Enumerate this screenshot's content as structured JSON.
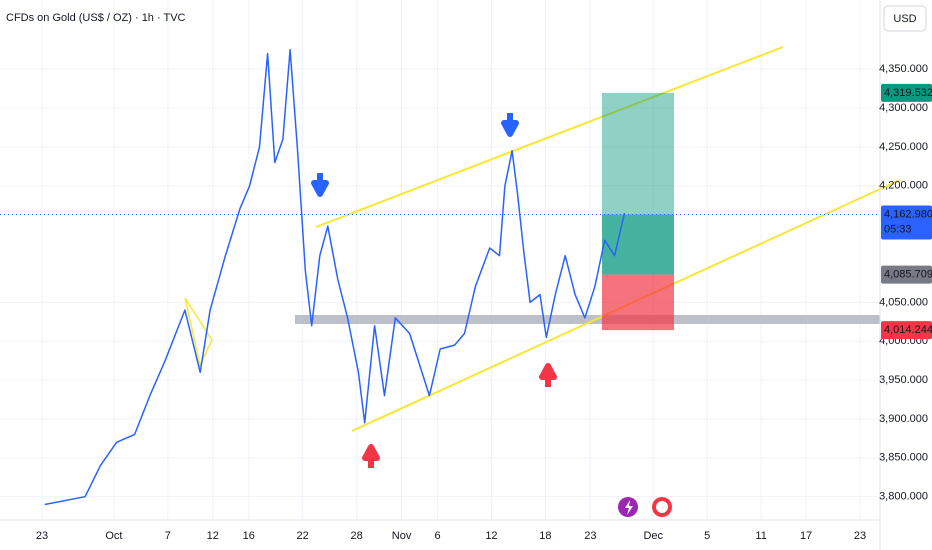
{
  "chart_data": {
    "type": "line",
    "title": "CFDs on Gold (US$ / OZ) · 1h · TVC",
    "currency": "USD",
    "x": [
      0.3,
      4.8,
      6.5,
      8.3,
      10.3,
      12,
      13.7,
      15.9,
      17.6,
      18.7,
      20.4,
      22,
      23.1,
      24.2,
      25.1,
      25.9,
      26.8,
      27.6,
      28.4,
      29.3,
      30,
      30.9,
      31.8,
      32.9,
      34,
      35.2,
      35.9,
      37,
      38.1,
      39.3,
      40.9,
      42,
      43.1,
      44.3,
      45.9,
      47,
      48.2,
      49.8,
      50.9,
      51.5,
      52.3,
      52.9,
      53.6,
      54.3,
      55.4,
      56.1,
      57.1,
      58.2,
      59.3,
      60.4,
      61.5,
      62.6,
      63.7,
      64.8
    ],
    "series": [
      {
        "name": "Gold",
        "color": "#2962ff",
        "values": [
          3790,
          3800,
          3840,
          3870,
          3880,
          3930,
          3975,
          4040,
          3960,
          4040,
          4110,
          4170,
          4200,
          4250,
          4370,
          4230,
          4260,
          4375,
          4250,
          4090,
          4020,
          4110,
          4148,
          4080,
          4030,
          3960,
          3895,
          4020,
          3930,
          4030,
          4010,
          3970,
          3930,
          3990,
          3995,
          4010,
          4070,
          4120,
          4110,
          4200,
          4245,
          4190,
          4115,
          4050,
          4060,
          4005,
          4060,
          4110,
          4060,
          4030,
          4070,
          4130,
          4110,
          4165
        ]
      }
    ],
    "xlim": [
      -1,
      92
    ],
    "ylim": [
      3770,
      4439
    ],
    "xticks": [
      {
        "value": 0,
        "label": "23"
      },
      {
        "value": 8,
        "label": "Oct"
      },
      {
        "value": 14,
        "label": "7"
      },
      {
        "value": 19,
        "label": "12"
      },
      {
        "value": 23,
        "label": "16"
      },
      {
        "value": 29,
        "label": "22"
      },
      {
        "value": 35,
        "label": "28"
      },
      {
        "value": 40,
        "label": "Nov"
      },
      {
        "value": 44,
        "label": "6"
      },
      {
        "value": 50,
        "label": "12"
      },
      {
        "value": 56,
        "label": "18"
      },
      {
        "value": 61,
        "label": "23"
      },
      {
        "value": 68,
        "label": "Dec"
      },
      {
        "value": 74,
        "label": "5"
      },
      {
        "value": 80,
        "label": "11"
      },
      {
        "value": 85,
        "label": "17"
      },
      {
        "value": 91,
        "label": "23"
      }
    ],
    "yticks": [
      {
        "value": 4350,
        "label": "4,350.000"
      },
      {
        "value": 4300,
        "label": "4,300.000"
      },
      {
        "value": 4250,
        "label": "4,250.000"
      },
      {
        "value": 4200,
        "label": "4,200.000"
      },
      {
        "value": 4050,
        "label": "4,050.000"
      },
      {
        "value": 4000,
        "label": "4,000.000"
      },
      {
        "value": 3950,
        "label": "3,950.000"
      },
      {
        "value": 3900,
        "label": "3,900.000"
      },
      {
        "value": 3850,
        "label": "3,850.000"
      },
      {
        "value": 3800,
        "label": "3,800.000"
      }
    ],
    "grid": true,
    "price_labels": [
      {
        "value": 4319.532,
        "label": "4,319.532",
        "color": "#089981"
      },
      {
        "value": 4162.98,
        "label": "4,162.980",
        "color": "#2962ff"
      },
      {
        "value": 4085.709,
        "label": "4,085.709",
        "color": "#787b86"
      },
      {
        "value": 4014.244,
        "label": "4,014.244",
        "color": "#f23645"
      }
    ],
    "countdown": "05:33"
  }
}
